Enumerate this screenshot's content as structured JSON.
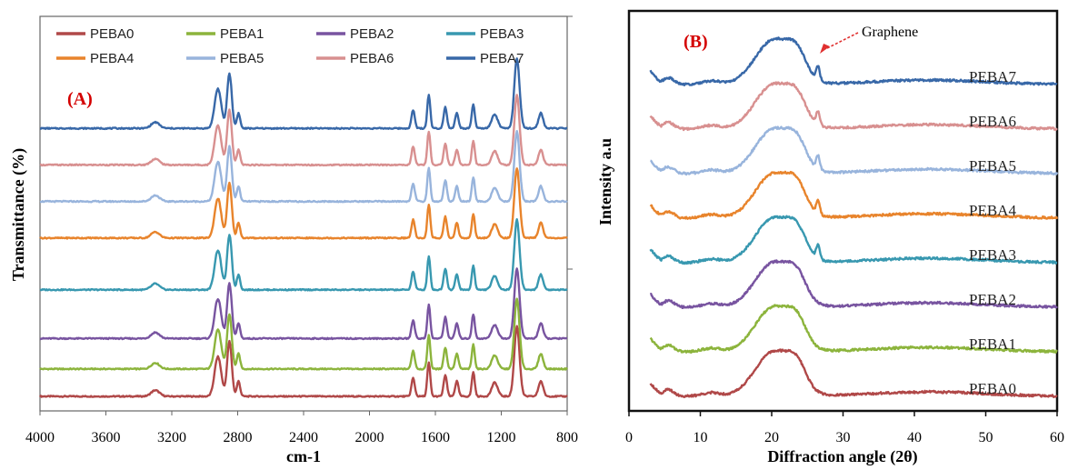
{
  "chart_data": [
    {
      "type": "line",
      "panel_label": "(A)",
      "xlabel": "cm-1",
      "ylabel": "Transmittance (%)",
      "xlim": [
        4000,
        800
      ],
      "x_reversed": true,
      "x_ticks": [
        "4000",
        "3600",
        "3200",
        "2800",
        "2400",
        "2000",
        "1600",
        "1200",
        "800"
      ],
      "y_ticks_shown": false,
      "legend_position": "top",
      "stacked_offsets": true,
      "series": [
        {
          "name": "PEBA0",
          "color": "#b04848",
          "baseline": 0.0
        },
        {
          "name": "PEBA1",
          "color": "#8cb43c",
          "baseline": 0.9
        },
        {
          "name": "PEBA2",
          "color": "#7854a0",
          "baseline": 1.9
        },
        {
          "name": "PEBA3",
          "color": "#3898b0",
          "baseline": 3.5
        },
        {
          "name": "PEBA4",
          "color": "#e8842c",
          "baseline": 5.2
        },
        {
          "name": "PEBA5",
          "color": "#98b4dc",
          "baseline": 6.4
        },
        {
          "name": "PEBA6",
          "color": "#d89090",
          "baseline": 7.6
        },
        {
          "name": "PEBA7",
          "color": "#3868a8",
          "baseline": 8.8
        }
      ],
      "peaks_cm1": [
        {
          "x": 3300,
          "w": 25,
          "h": 0.2
        },
        {
          "x": 2920,
          "w": 20,
          "h": 1.3
        },
        {
          "x": 2850,
          "w": 14,
          "h": 1.8
        },
        {
          "x": 2795,
          "w": 10,
          "h": 0.5
        },
        {
          "x": 1735,
          "w": 10,
          "h": 0.6
        },
        {
          "x": 1640,
          "w": 9,
          "h": 1.1
        },
        {
          "x": 1540,
          "w": 10,
          "h": 0.7
        },
        {
          "x": 1470,
          "w": 10,
          "h": 0.5
        },
        {
          "x": 1370,
          "w": 9,
          "h": 0.8
        },
        {
          "x": 1240,
          "w": 18,
          "h": 0.45
        },
        {
          "x": 1105,
          "w": 16,
          "h": 2.3
        },
        {
          "x": 960,
          "w": 14,
          "h": 0.5
        }
      ]
    },
    {
      "type": "line",
      "panel_label": "(B)",
      "xlabel": "Diffraction angle (2θ)",
      "ylabel": "Intensity a.u",
      "xlim": [
        0,
        60
      ],
      "x_ticks": [
        "0",
        "10",
        "20",
        "30",
        "40",
        "50",
        "60"
      ],
      "y_ticks_shown": false,
      "stacked_offsets": true,
      "annotation": {
        "text": "Graphene",
        "points_to_x": 26.5
      },
      "series": [
        {
          "name": "PEBA0",
          "color": "#b04848",
          "baseline": 0.0,
          "graphene_peak": false
        },
        {
          "name": "PEBA1",
          "color": "#8cb43c",
          "baseline": 1.0,
          "graphene_peak": false
        },
        {
          "name": "PEBA2",
          "color": "#7854a0",
          "baseline": 2.0,
          "graphene_peak": false
        },
        {
          "name": "PEBA3",
          "color": "#3898b0",
          "baseline": 3.0,
          "graphene_peak": true
        },
        {
          "name": "PEBA4",
          "color": "#e8842c",
          "baseline": 4.0,
          "graphene_peak": true
        },
        {
          "name": "PEBA5",
          "color": "#98b4dc",
          "baseline": 5.0,
          "graphene_peak": true
        },
        {
          "name": "PEBA6",
          "color": "#d89090",
          "baseline": 6.0,
          "graphene_peak": true
        },
        {
          "name": "PEBA7",
          "color": "#3868a8",
          "baseline": 7.0,
          "graphene_peak": true
        }
      ],
      "peaks_2theta": [
        {
          "x": 20.3,
          "w": 2.6,
          "h": 1.0
        },
        {
          "x": 23.6,
          "w": 1.3,
          "h": 0.45
        },
        {
          "x": 5.5,
          "w": 0.8,
          "h": 0.15
        },
        {
          "x": 11.5,
          "w": 1.3,
          "h": 0.08
        },
        {
          "x": 42,
          "w": 8,
          "h": 0.1
        }
      ]
    }
  ]
}
